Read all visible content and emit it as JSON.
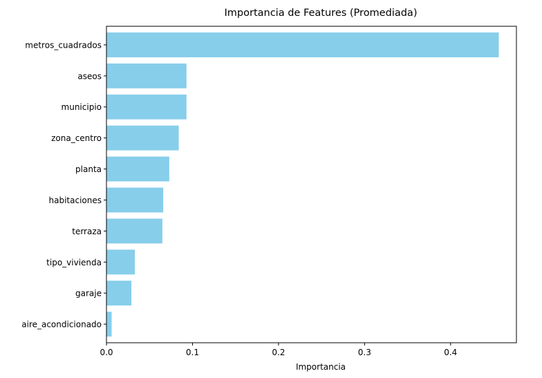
{
  "chart_data": {
    "type": "bar",
    "orientation": "horizontal",
    "title": "Importancia de Features (Promediada)",
    "xlabel": "Importancia",
    "ylabel": "",
    "categories": [
      "metros_cuadrados",
      "aseos",
      "municipio",
      "zona_centro",
      "planta",
      "habitaciones",
      "terraza",
      "tipo_vivienda",
      "garaje",
      "aire_acondicionado"
    ],
    "values": [
      0.456,
      0.093,
      0.093,
      0.084,
      0.073,
      0.066,
      0.065,
      0.033,
      0.029,
      0.006
    ],
    "xlim": [
      0,
      0.4765
    ],
    "xticks": [
      "0.0",
      "0.1",
      "0.2",
      "0.3",
      "0.4"
    ],
    "xtick_values": [
      0,
      0.1,
      0.2,
      0.3,
      0.4
    ],
    "bar_color": "#87ceeb",
    "grid": false,
    "legend": "none"
  }
}
